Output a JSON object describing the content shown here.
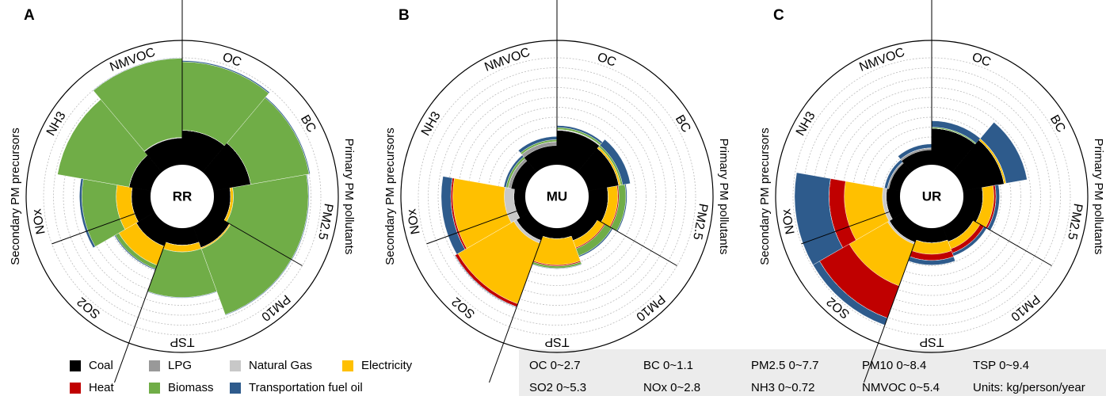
{
  "chart_data": [
    {
      "type": "polar_stacked_bar",
      "panel": "A",
      "center_label": "RR",
      "group_labels": [
        "Primary PM pollutants",
        "Secondary PM precursors"
      ],
      "categories": [
        "OC",
        "BC",
        "PM2.5",
        "PM10",
        "TSP",
        "SO2",
        "NOx",
        "NH3",
        "NMVOC"
      ],
      "series": [
        {
          "name": "Coal",
          "color": "#000000",
          "values": [
            0.87,
            0.39,
            1.2,
            1.8,
            1.5,
            1.06,
            0.5,
            0.15,
            1.35
          ]
        },
        {
          "name": "LPG",
          "color": "#999999",
          "values": [
            0,
            0,
            0,
            0,
            0,
            0,
            0,
            0,
            0.03
          ]
        },
        {
          "name": "Natural Gas",
          "color": "#c8c8c8",
          "values": [
            0,
            0,
            0,
            0,
            0,
            0,
            0,
            0,
            0
          ]
        },
        {
          "name": "Electricity",
          "color": "#ffc000",
          "values": [
            0,
            0,
            0.2,
            0.1,
            0.6,
            1.0,
            0.4,
            0,
            0
          ]
        },
        {
          "name": "Heat",
          "color": "#c00000",
          "values": [
            0,
            0,
            0,
            0,
            0,
            0,
            0,
            0,
            0
          ]
        },
        {
          "name": "Biomass",
          "color": "#70ad47",
          "values": [
            1.73,
            0.61,
            5.4,
            5.5,
            4.0,
            0.2,
            0.9,
            0.49,
            4.0
          ]
        },
        {
          "name": "Transportation fuel oil",
          "color": "#2e5b8c",
          "values": [
            0.03,
            0.01,
            0.05,
            0.05,
            0.05,
            0.05,
            0.06,
            0,
            0.02
          ]
        }
      ]
    },
    {
      "type": "polar_stacked_bar",
      "panel": "B",
      "center_label": "MU",
      "group_labels": [
        "Primary PM pollutants",
        "Secondary PM precursors"
      ],
      "categories": [
        "OC",
        "BC",
        "PM2.5",
        "PM10",
        "TSP",
        "SO2",
        "NOx",
        "NH3",
        "NMVOC"
      ],
      "series": [
        {
          "name": "Coal",
          "color": "#000000",
          "values": [
            0.87,
            0.32,
            1.4,
            1.2,
            0.94,
            0.75,
            0.3,
            0.1,
            0.97
          ]
        },
        {
          "name": "LPG",
          "color": "#999999",
          "values": [
            0,
            0,
            0,
            0,
            0,
            0,
            0,
            0.02,
            0.2
          ]
        },
        {
          "name": "Natural Gas",
          "color": "#c8c8c8",
          "values": [
            0.02,
            0,
            0,
            0,
            0,
            0.15,
            0.25,
            0,
            0
          ]
        },
        {
          "name": "Electricity",
          "color": "#ffc000",
          "values": [
            0,
            0.02,
            0.7,
            0.6,
            2.3,
            3.2,
            1.35,
            0,
            0
          ]
        },
        {
          "name": "Heat",
          "color": "#c00000",
          "values": [
            0,
            0,
            0.08,
            0.08,
            0.1,
            0.16,
            0.05,
            0,
            0
          ]
        },
        {
          "name": "Biomass",
          "color": "#70ad47",
          "values": [
            0.05,
            0.02,
            0.5,
            0.6,
            0.2,
            0,
            0,
            0.015,
            0.1
          ]
        },
        {
          "name": "Transportation fuel oil",
          "color": "#2e5b8c",
          "values": [
            0.05,
            0.08,
            0.08,
            0.1,
            0.05,
            0.03,
            0.25,
            0.015,
            0.16
          ]
        }
      ]
    },
    {
      "type": "polar_stacked_bar",
      "panel": "C",
      "center_label": "UR",
      "group_labels": [
        "Primary PM pollutants",
        "Secondary PM precursors"
      ],
      "categories": [
        "OC",
        "BC",
        "PM2.5",
        "PM10",
        "TSP",
        "SO2",
        "NOx",
        "NH3",
        "NMVOC"
      ],
      "series": [
        {
          "name": "Coal",
          "color": "#000000",
          "values": [
            0.92,
            0.43,
            1.4,
            1.3,
            1.3,
            0.85,
            0.36,
            0.08,
            0.75
          ]
        },
        {
          "name": "LPG",
          "color": "#999999",
          "values": [
            0,
            0,
            0,
            0,
            0,
            0,
            0,
            0.01,
            0.1
          ]
        },
        {
          "name": "Natural Gas",
          "color": "#c8c8c8",
          "values": [
            0,
            0,
            0,
            0,
            0,
            0.1,
            0.1,
            0,
            0
          ]
        },
        {
          "name": "Electricity",
          "color": "#ffc000",
          "values": [
            0,
            0.02,
            0.8,
            0.6,
            1.0,
            2.2,
            1.0,
            0,
            0
          ]
        },
        {
          "name": "Heat",
          "color": "#c00000",
          "values": [
            0,
            0,
            0.15,
            0.35,
            0.55,
            1.7,
            0.4,
            0,
            0
          ]
        },
        {
          "name": "Biomass",
          "color": "#70ad47",
          "values": [
            0.03,
            0,
            0,
            0,
            0,
            0,
            0,
            0,
            0
          ]
        },
        {
          "name": "Transportation fuel oil",
          "color": "#2e5b8c",
          "values": [
            0.16,
            0.22,
            0.25,
            0.25,
            0.4,
            0.37,
            0.9,
            0.02,
            0.2
          ]
        }
      ]
    }
  ],
  "scale_key": [
    {
      "value": 2.7,
      "label": "OC 0~2.7"
    },
    {
      "value": 1.1,
      "label": "BC 0~1.1"
    },
    {
      "value": 7.7,
      "label": "PM2.5 0~7.7"
    },
    {
      "value": 8.4,
      "label": "PM10 0~8.4"
    },
    {
      "value": 9.4,
      "label": "TSP 0~9.4"
    },
    {
      "value": 5.3,
      "label": "SO2 0~5.3"
    },
    {
      "value": 2.8,
      "label": "NOx 0~2.8"
    },
    {
      "value": 0.72,
      "label": "NH3 0~0.72"
    },
    {
      "value": 5.4,
      "label": "NMVOC 0~5.4"
    }
  ],
  "units": "Units: kg/person/year"
}
